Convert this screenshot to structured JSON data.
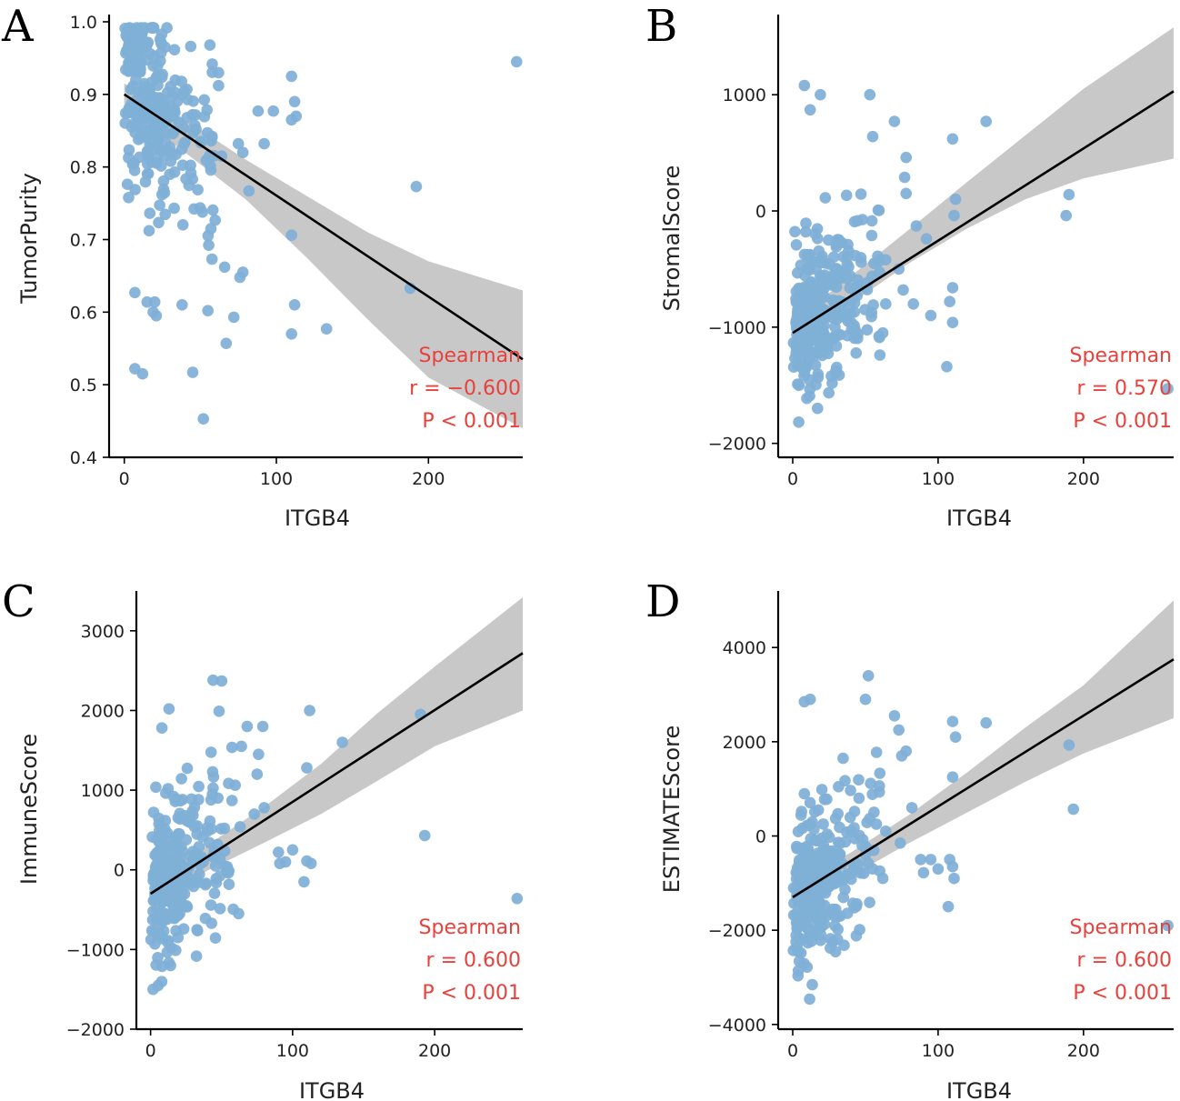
{
  "colors": {
    "point": "#7fafd6",
    "line": "#000000",
    "band": "#c8c8c8",
    "annotation": "#e8413c"
  },
  "chart_data": [
    {
      "panel": "A",
      "type": "scatter",
      "xlabel": "ITGB4",
      "ylabel": "TumorPurity",
      "xlim": [
        -10,
        262
      ],
      "ylim": [
        0.4,
        1.01
      ],
      "xticks": [
        0,
        100,
        200
      ],
      "yticks": [
        0.4,
        0.5,
        0.6,
        0.7,
        0.8,
        0.9,
        1.0
      ],
      "ytick_labels": [
        "0.4",
        "0.5",
        "0.6",
        "0.7",
        "0.8",
        "0.9",
        "1.0"
      ],
      "fit": {
        "x": [
          0,
          262
        ],
        "y": [
          0.9,
          0.535
        ]
      },
      "band": {
        "x": [
          0,
          40,
          80,
          120,
          160,
          200,
          262
        ],
        "lower": [
          0.885,
          0.82,
          0.755,
          0.675,
          0.59,
          0.51,
          0.44
        ],
        "upper": [
          0.915,
          0.865,
          0.81,
          0.76,
          0.71,
          0.67,
          0.63
        ]
      },
      "annotation": {
        "method": "Spearman",
        "r": "r = −0.600",
        "p": "P < 0.001"
      },
      "highlight_points": [
        [
          258,
          0.945
        ],
        [
          110,
          0.925
        ],
        [
          112,
          0.89
        ],
        [
          113,
          0.87
        ],
        [
          110,
          0.865
        ],
        [
          98,
          0.877
        ],
        [
          88,
          0.877
        ],
        [
          92,
          0.832
        ],
        [
          75,
          0.832
        ],
        [
          78,
          0.82
        ],
        [
          82,
          0.767
        ],
        [
          192,
          0.773
        ],
        [
          188,
          0.633
        ],
        [
          110,
          0.706
        ],
        [
          112,
          0.61
        ],
        [
          110,
          0.57
        ],
        [
          133,
          0.577
        ],
        [
          78,
          0.655
        ],
        [
          76,
          0.648
        ],
        [
          66,
          0.662
        ],
        [
          72,
          0.593
        ],
        [
          67,
          0.557
        ],
        [
          55,
          0.602
        ],
        [
          45,
          0.517
        ],
        [
          52,
          0.453
        ],
        [
          7,
          0.522
        ],
        [
          12,
          0.515
        ],
        [
          7,
          0.627
        ],
        [
          19,
          0.6
        ],
        [
          21,
          0.595
        ],
        [
          15,
          0.614
        ],
        [
          20,
          0.614
        ],
        [
          38,
          0.61
        ],
        [
          64,
          0.815
        ],
        [
          62,
          0.93
        ],
        [
          62,
          0.912
        ]
      ]
    },
    {
      "panel": "B",
      "type": "scatter",
      "xlabel": "ITGB4",
      "ylabel": "StromalScore",
      "xlim": [
        -10,
        262
      ],
      "ylim": [
        -2120,
        1690
      ],
      "xticks": [
        0,
        100,
        200
      ],
      "yticks": [
        -2000,
        -1000,
        0,
        1000
      ],
      "ytick_labels": [
        "−2000",
        "−1000",
        "0",
        "1000"
      ],
      "fit": {
        "x": [
          0,
          262
        ],
        "y": [
          -1050,
          1030
        ]
      },
      "band": {
        "x": [
          0,
          40,
          80,
          120,
          160,
          200,
          262
        ],
        "lower": [
          -1150,
          -800,
          -450,
          -150,
          100,
          280,
          450
        ],
        "upper": [
          -950,
          -560,
          -160,
          250,
          650,
          1050,
          1580
        ]
      },
      "annotation": {
        "method": "Spearman",
        "r": "r = 0.570",
        "p": "P < 0.001"
      },
      "highlight_points": [
        [
          258,
          -1530
        ],
        [
          190,
          140
        ],
        [
          188,
          -40
        ],
        [
          133,
          770
        ],
        [
          110,
          620
        ],
        [
          112,
          100
        ],
        [
          111,
          -40
        ],
        [
          110,
          -660
        ],
        [
          108,
          -780
        ],
        [
          110,
          -960
        ],
        [
          106,
          -1340
        ],
        [
          95,
          -900
        ],
        [
          92,
          -240
        ],
        [
          85,
          -130
        ],
        [
          83,
          -800
        ],
        [
          78,
          460
        ],
        [
          77,
          290
        ],
        [
          78,
          150
        ],
        [
          76,
          -680
        ],
        [
          73,
          -500
        ],
        [
          70,
          770
        ],
        [
          64,
          -420
        ],
        [
          64,
          -800
        ],
        [
          62,
          -1050
        ],
        [
          60,
          -1240
        ],
        [
          53,
          1000
        ],
        [
          55,
          640
        ],
        [
          8,
          1080
        ],
        [
          19,
          1000
        ],
        [
          12,
          870
        ]
      ]
    },
    {
      "panel": "C",
      "type": "scatter",
      "xlabel": "ITGB4",
      "ylabel": "ImmuneScore",
      "xlim": [
        -10,
        262
      ],
      "ylim": [
        -2000,
        3500
      ],
      "xticks": [
        0,
        100,
        200
      ],
      "yticks": [
        -2000,
        -1000,
        0,
        1000,
        2000,
        3000
      ],
      "ytick_labels": [
        "−2000",
        "−1000",
        "0",
        "1000",
        "2000",
        "3000"
      ],
      "fit": {
        "x": [
          0,
          262
        ],
        "y": [
          -300,
          2720
        ]
      },
      "band": {
        "x": [
          0,
          40,
          80,
          120,
          160,
          200,
          262
        ],
        "lower": [
          -440,
          -10,
          340,
          700,
          1120,
          1550,
          2000
        ],
        "upper": [
          -150,
          310,
          790,
          1330,
          1970,
          2550,
          3420
        ]
      },
      "annotation": {
        "method": "Spearman",
        "r": "r = 0.600",
        "p": "P < 0.001"
      },
      "highlight_points": [
        [
          258,
          -360
        ],
        [
          193,
          430
        ],
        [
          190,
          1950
        ],
        [
          135,
          1600
        ],
        [
          112,
          2000
        ],
        [
          110,
          1280
        ],
        [
          110,
          110
        ],
        [
          113,
          80
        ],
        [
          108,
          -150
        ],
        [
          100,
          250
        ],
        [
          95,
          100
        ],
        [
          91,
          80
        ],
        [
          90,
          220
        ],
        [
          80,
          780
        ],
        [
          79,
          1800
        ],
        [
          76,
          1450
        ],
        [
          75,
          1200
        ],
        [
          73,
          700
        ],
        [
          68,
          1800
        ],
        [
          64,
          1550
        ],
        [
          63,
          540
        ],
        [
          62,
          -550
        ],
        [
          44,
          2380
        ],
        [
          50,
          2370
        ],
        [
          13,
          2020
        ],
        [
          8,
          1780
        ]
      ]
    },
    {
      "panel": "D",
      "type": "scatter",
      "xlabel": "ITGB4",
      "ylabel": "ESTIMATEScore",
      "xlim": [
        -10,
        262
      ],
      "ylim": [
        -4100,
        5200
      ],
      "xticks": [
        0,
        100,
        200
      ],
      "yticks": [
        -4000,
        -2000,
        0,
        2000,
        4000
      ],
      "ytick_labels": [
        "−4000",
        "−2000",
        "0",
        "2000",
        "4000"
      ],
      "fit": {
        "x": [
          0,
          262
        ],
        "y": [
          -1300,
          3750
        ]
      },
      "band": {
        "x": [
          0,
          40,
          80,
          120,
          160,
          200,
          262
        ],
        "lower": [
          -1550,
          -850,
          -150,
          500,
          1150,
          1750,
          2500
        ],
        "upper": [
          -1050,
          -350,
          450,
          1350,
          2300,
          3200,
          5000
        ]
      },
      "annotation": {
        "method": "Spearman",
        "r": "r = 0.600",
        "p": "P < 0.001"
      },
      "highlight_points": [
        [
          258,
          -1900
        ],
        [
          193,
          570
        ],
        [
          190,
          1930
        ],
        [
          133,
          2400
        ],
        [
          110,
          2430
        ],
        [
          112,
          2100
        ],
        [
          110,
          1250
        ],
        [
          108,
          -500
        ],
        [
          110,
          -650
        ],
        [
          111,
          -900
        ],
        [
          107,
          -1500
        ],
        [
          100,
          -700
        ],
        [
          95,
          -500
        ],
        [
          90,
          -780
        ],
        [
          88,
          -500
        ],
        [
          82,
          600
        ],
        [
          78,
          1800
        ],
        [
          75,
          1700
        ],
        [
          74,
          -150
        ],
        [
          73,
          2250
        ],
        [
          70,
          2550
        ],
        [
          64,
          100
        ],
        [
          62,
          -900
        ],
        [
          50,
          2900
        ],
        [
          52,
          3400
        ],
        [
          12,
          2900
        ],
        [
          8,
          2850
        ]
      ]
    }
  ]
}
